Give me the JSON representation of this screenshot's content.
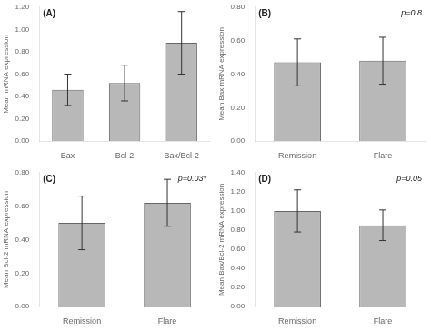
{
  "chart_data": [
    {
      "type": "bar",
      "annotations": [
        "(A)"
      ],
      "categories": [
        "Bax",
        "Bcl-2",
        "Bax/Bcl-2"
      ],
      "values": [
        0.46,
        0.52,
        0.88
      ],
      "errors": [
        0.14,
        0.16,
        0.28
      ],
      "color": "#b8b8b8",
      "ylabel": "Mean mRNA expression",
      "ylim": [
        0.0,
        1.2
      ],
      "yticks": [
        {
          "value": 0.0,
          "label": "0.00"
        },
        {
          "value": 0.2,
          "label": "0.20"
        },
        {
          "value": 0.4,
          "label": "0.40"
        },
        {
          "value": 0.6,
          "label": "0.60"
        },
        {
          "value": 0.8,
          "label": "0.80"
        },
        {
          "value": 1.0,
          "label": "1.00"
        },
        {
          "value": 1.2,
          "label": "1.20"
        }
      ],
      "grid": false
    },
    {
      "type": "bar",
      "annotations": [
        "(B)",
        "p=0.8"
      ],
      "categories": [
        "Remission",
        "Flare"
      ],
      "values": [
        0.47,
        0.48
      ],
      "errors": [
        0.14,
        0.14
      ],
      "color": "#b8b8b8",
      "ylabel": "Mean Bax mRNA expression",
      "ylim": [
        0.0,
        0.8
      ],
      "yticks": [
        {
          "value": 0.0,
          "label": "0.00"
        },
        {
          "value": 0.2,
          "label": "0.20"
        },
        {
          "value": 0.4,
          "label": "0.40"
        },
        {
          "value": 0.6,
          "label": "0.60"
        },
        {
          "value": 0.8,
          "label": "0.80"
        }
      ],
      "grid": false
    },
    {
      "type": "bar",
      "annotations": [
        "(C)",
        "p=0.03*"
      ],
      "categories": [
        "Remission",
        "Flare"
      ],
      "values": [
        0.5,
        0.62
      ],
      "errors": [
        0.16,
        0.14
      ],
      "color": "#b8b8b8",
      "ylabel": "Mean Bcl-2 mRNA expression",
      "ylim": [
        0.0,
        0.8
      ],
      "yticks": [
        {
          "value": 0.0,
          "label": "0.00"
        },
        {
          "value": 0.2,
          "label": "0.20"
        },
        {
          "value": 0.4,
          "label": "0.40"
        },
        {
          "value": 0.6,
          "label": "0.60"
        },
        {
          "value": 0.8,
          "label": "0.80"
        }
      ],
      "grid": false
    },
    {
      "type": "bar",
      "annotations": [
        "(D)",
        "p=0.05"
      ],
      "categories": [
        "Remission",
        "Flare"
      ],
      "values": [
        1.0,
        0.85
      ],
      "errors": [
        0.22,
        0.16
      ],
      "color": "#b8b8b8",
      "ylabel": "Mean Bax/Bcl-2 mRNA expression",
      "ylim": [
        0.0,
        1.4
      ],
      "yticks": [
        {
          "value": 0.0,
          "label": "0.00"
        },
        {
          "value": 0.2,
          "label": "0.20"
        },
        {
          "value": 0.4,
          "label": "0.40"
        },
        {
          "value": 0.6,
          "label": "0.60"
        },
        {
          "value": 0.8,
          "label": "0.80"
        },
        {
          "value": 1.0,
          "label": "1.00"
        },
        {
          "value": 1.2,
          "label": "1.20"
        },
        {
          "value": 1.4,
          "label": "1.40"
        }
      ],
      "grid": false
    }
  ]
}
